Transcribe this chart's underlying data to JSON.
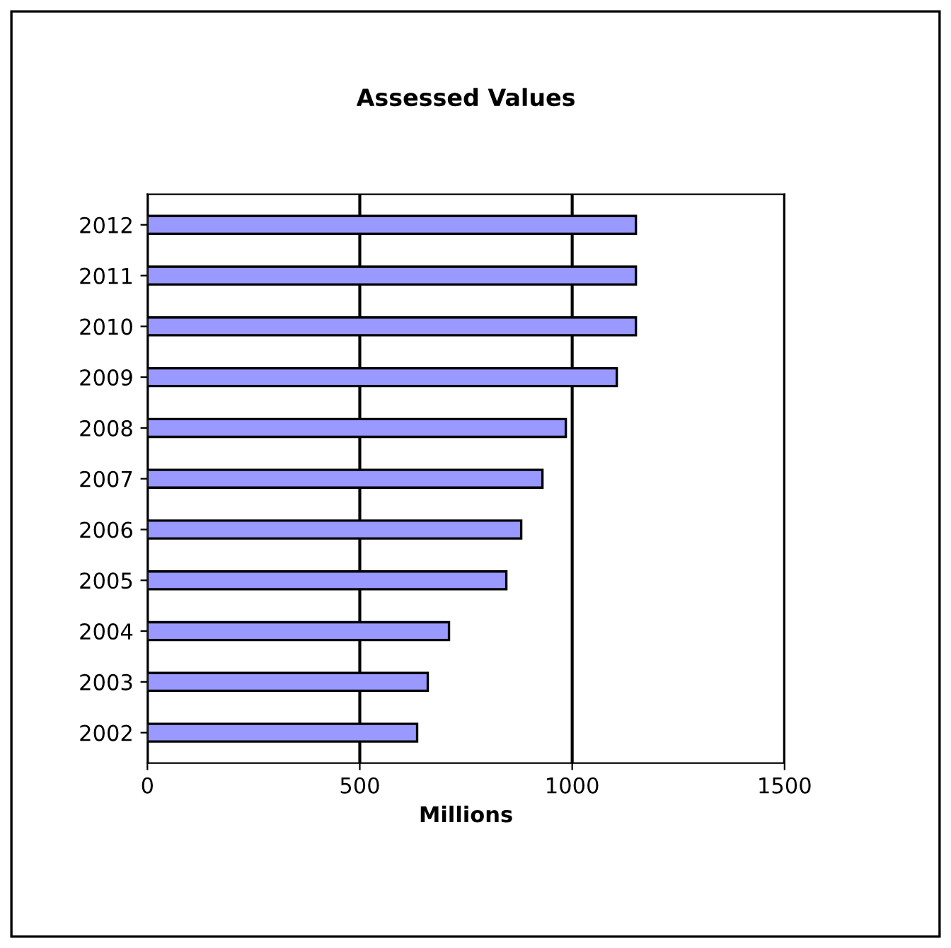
{
  "chart_data": {
    "type": "bar",
    "orientation": "horizontal",
    "title": "Assessed Values",
    "xlabel": "Millions",
    "categories": [
      "2012",
      "2011",
      "2010",
      "2009",
      "2008",
      "2007",
      "2006",
      "2005",
      "2004",
      "2003",
      "2002"
    ],
    "values": [
      1150,
      1150,
      1150,
      1105,
      985,
      930,
      880,
      845,
      710,
      660,
      635
    ],
    "color": "#9999ff",
    "xlim": [
      0,
      1500
    ],
    "xticks": [
      0,
      500,
      1000,
      1500
    ],
    "grid": "x"
  }
}
